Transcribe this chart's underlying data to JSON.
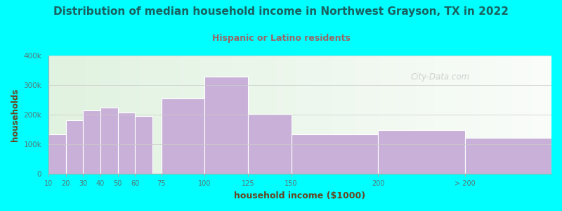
{
  "title": "Distribution of median household income in Northwest Grayson, TX in 2022",
  "subtitle": "Hispanic or Latino residents",
  "xlabel": "household income ($1000)",
  "ylabel": "households",
  "background_color": "#00FFFF",
  "bar_color": "#c8b0d8",
  "bar_edge_color": "#ffffff",
  "title_color": "#1a6060",
  "subtitle_color": "#996666",
  "axis_label_color": "#664422",
  "tick_label_color": "#557777",
  "grid_color": "#cccccc",
  "watermark": "City-Data.com",
  "categories": [
    "10",
    "20",
    "30",
    "40",
    "50",
    "60",
    "75",
    "100",
    "125",
    "150",
    "200",
    "> 200"
  ],
  "values": [
    135000,
    182000,
    215000,
    225000,
    208000,
    196000,
    255000,
    328000,
    202000,
    135000,
    148000,
    122000
  ],
  "ylim": [
    0,
    400000
  ],
  "yticks": [
    0,
    100000,
    200000,
    300000,
    400000
  ],
  "x_left_edges": [
    10,
    20,
    30,
    40,
    50,
    60,
    75,
    100,
    125,
    150,
    200,
    250
  ],
  "x_widths": [
    10,
    10,
    10,
    10,
    10,
    10,
    25,
    25,
    25,
    50,
    50,
    50
  ],
  "tick_positions": [
    10,
    20,
    30,
    40,
    50,
    60,
    75,
    100,
    125,
    150,
    200,
    250
  ],
  "xlim": [
    10,
    300
  ]
}
